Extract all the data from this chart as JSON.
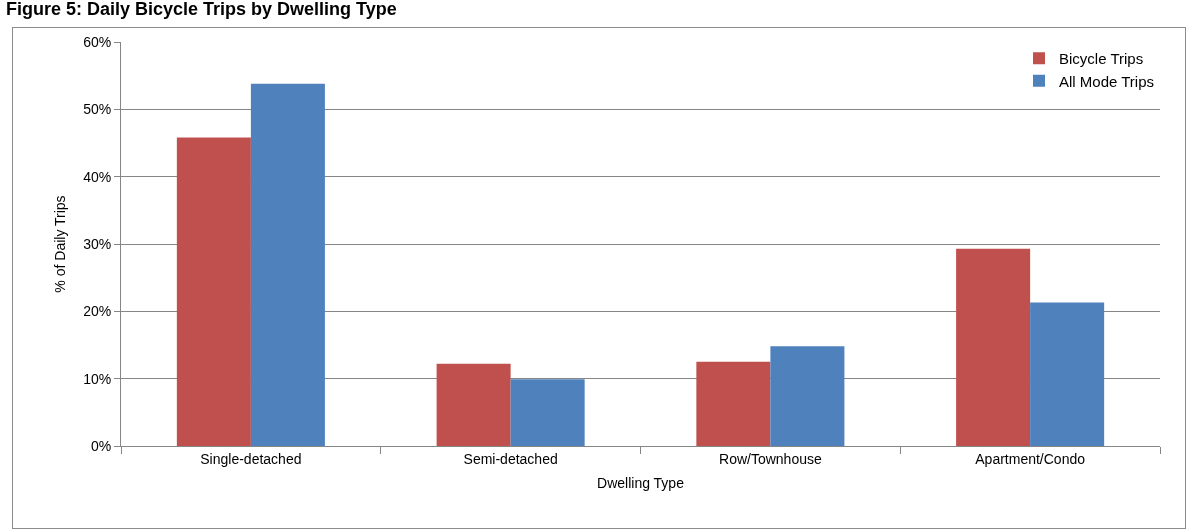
{
  "chart_data": {
    "type": "bar",
    "title": "Figure 5: Daily Bicycle Trips by Dwelling Type",
    "xlabel": "Dwelling Type",
    "ylabel": "% of Daily Trips",
    "categories": [
      "Single-detached",
      "Semi-detached",
      "Row/Townhouse",
      "Apartment/Condo"
    ],
    "series": [
      {
        "name": "Bicycle Trips",
        "color": "#c0504d",
        "values": [
          45.8,
          12.2,
          12.5,
          29.3
        ]
      },
      {
        "name": "All Mode Trips",
        "color": "#4f81bd",
        "values": [
          53.8,
          9.9,
          14.8,
          21.3
        ]
      }
    ],
    "ylim": [
      0,
      60
    ],
    "yticks": [
      {
        "value": 0,
        "label": "0%"
      },
      {
        "value": 10,
        "label": "10%"
      },
      {
        "value": 20,
        "label": "20%"
      },
      {
        "value": 30,
        "label": "30%"
      },
      {
        "value": 40,
        "label": "40%"
      },
      {
        "value": 50,
        "label": "50%"
      },
      {
        "value": 60,
        "label": "60%"
      }
    ],
    "grid": "y",
    "legend": "top right"
  }
}
